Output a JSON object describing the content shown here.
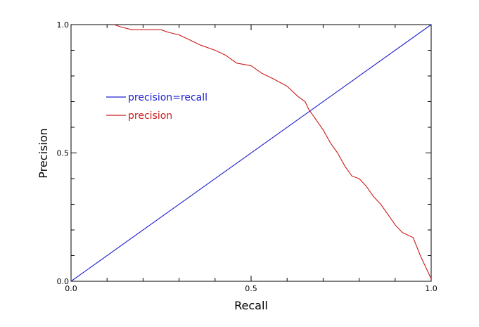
{
  "chart_data": {
    "type": "line",
    "xlabel": "Recall",
    "ylabel": "Precision",
    "xlim": [
      0.0,
      1.0
    ],
    "ylim": [
      0.0,
      1.0
    ],
    "x_ticks": [
      "0.0",
      "0.5",
      "1.0"
    ],
    "y_ticks": [
      "0.0",
      "0.5",
      "1.0"
    ],
    "grid": false,
    "legend_position": "upper-left inside",
    "series": [
      {
        "name": "precision=recall",
        "color": "#2020d0",
        "x": [
          0.0,
          1.0
        ],
        "y": [
          0.0,
          1.0
        ]
      },
      {
        "name": "precision",
        "color": "#cc1a1a",
        "x": [
          0.12,
          0.14,
          0.17,
          0.2,
          0.25,
          0.27,
          0.3,
          0.33,
          0.36,
          0.4,
          0.43,
          0.46,
          0.5,
          0.53,
          0.56,
          0.6,
          0.63,
          0.65,
          0.66,
          0.68,
          0.7,
          0.72,
          0.74,
          0.76,
          0.78,
          0.8,
          0.82,
          0.84,
          0.86,
          0.88,
          0.9,
          0.92,
          0.95,
          0.97,
          1.0
        ],
        "y": [
          1.0,
          0.99,
          0.98,
          0.98,
          0.98,
          0.97,
          0.96,
          0.94,
          0.92,
          0.9,
          0.88,
          0.85,
          0.84,
          0.81,
          0.79,
          0.76,
          0.72,
          0.7,
          0.67,
          0.63,
          0.59,
          0.54,
          0.5,
          0.45,
          0.41,
          0.4,
          0.37,
          0.33,
          0.3,
          0.26,
          0.22,
          0.19,
          0.17,
          0.1,
          0.01
        ]
      }
    ]
  }
}
